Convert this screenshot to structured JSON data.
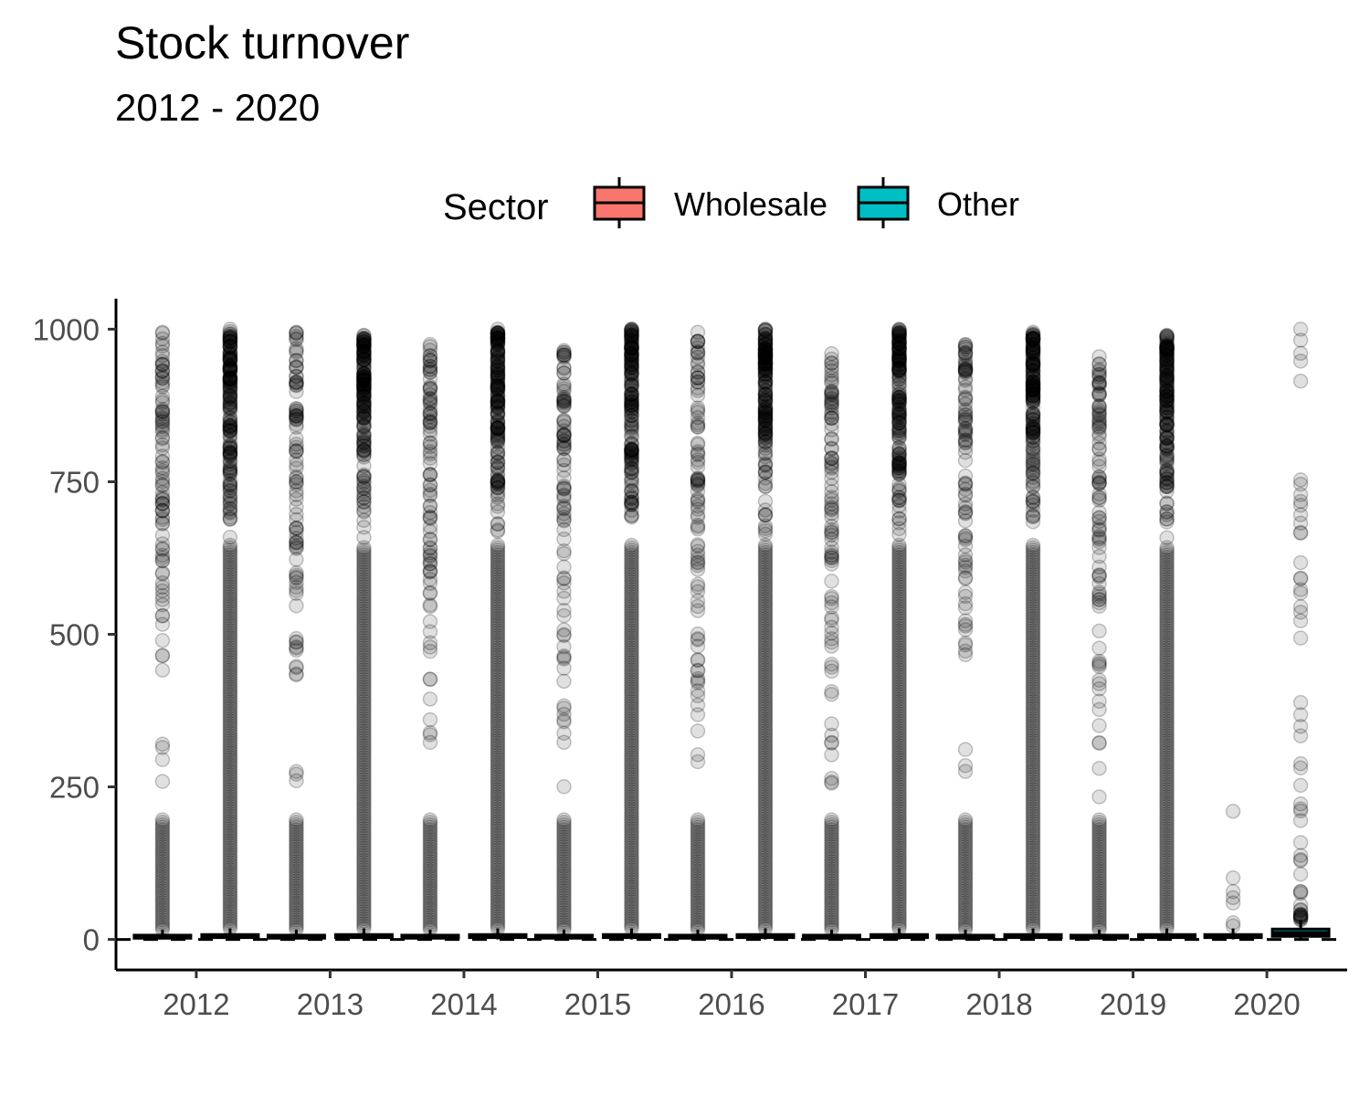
{
  "chart_data": {
    "type": "boxplot",
    "title": "Stock turnover",
    "subtitle": "2012 - 2020",
    "xlabel": "",
    "ylabel": "",
    "ylim": [
      -50,
      1050
    ],
    "yticks": [
      0,
      250,
      500,
      750,
      1000
    ],
    "reference_line": {
      "y": 0,
      "style": "dashed"
    },
    "grid": false,
    "legend": {
      "title": "Sector",
      "position": "top",
      "entries": [
        {
          "name": "Wholesale",
          "color": "#F8766D"
        },
        {
          "name": "Other",
          "color": "#00BFC4"
        }
      ]
    },
    "categories": [
      "2012",
      "2013",
      "2014",
      "2015",
      "2016",
      "2017",
      "2018",
      "2019",
      "2020"
    ],
    "series": [
      {
        "name": "Wholesale",
        "color": "#F8766D",
        "boxes": [
          {
            "q1": 2,
            "median": 4,
            "q3": 7,
            "whisker_high": 16,
            "outlier_max": 995
          },
          {
            "q1": 2,
            "median": 4,
            "q3": 7,
            "whisker_high": 16,
            "outlier_max": 995
          },
          {
            "q1": 2,
            "median": 4,
            "q3": 7,
            "whisker_high": 16,
            "outlier_max": 975
          },
          {
            "q1": 2,
            "median": 4,
            "q3": 7,
            "whisker_high": 16,
            "outlier_max": 965
          },
          {
            "q1": 2,
            "median": 4,
            "q3": 7,
            "whisker_high": 16,
            "outlier_max": 995
          },
          {
            "q1": 2,
            "median": 4,
            "q3": 7,
            "whisker_high": 16,
            "outlier_max": 960
          },
          {
            "q1": 2,
            "median": 4,
            "q3": 7,
            "whisker_high": 16,
            "outlier_max": 975
          },
          {
            "q1": 2,
            "median": 4,
            "q3": 7,
            "whisker_high": 16,
            "outlier_max": 955
          },
          {
            "q1": 3,
            "median": 5,
            "q3": 8,
            "whisker_high": 18,
            "outlier_max": 210
          }
        ]
      },
      {
        "name": "Other",
        "color": "#00BFC4",
        "boxes": [
          {
            "q1": 3,
            "median": 5,
            "q3": 8,
            "whisker_high": 18,
            "outlier_max": 1000
          },
          {
            "q1": 3,
            "median": 5,
            "q3": 8,
            "whisker_high": 18,
            "outlier_max": 990
          },
          {
            "q1": 3,
            "median": 5,
            "q3": 8,
            "whisker_high": 18,
            "outlier_max": 1000
          },
          {
            "q1": 3,
            "median": 5,
            "q3": 8,
            "whisker_high": 18,
            "outlier_max": 1000
          },
          {
            "q1": 3,
            "median": 5,
            "q3": 8,
            "whisker_high": 18,
            "outlier_max": 1000
          },
          {
            "q1": 3,
            "median": 5,
            "q3": 8,
            "whisker_high": 18,
            "outlier_max": 1000
          },
          {
            "q1": 3,
            "median": 5,
            "q3": 8,
            "whisker_high": 18,
            "outlier_max": 995
          },
          {
            "q1": 3,
            "median": 5,
            "q3": 8,
            "whisker_high": 18,
            "outlier_max": 990
          },
          {
            "q1": 5,
            "median": 10,
            "q3": 17,
            "whisker_high": 32,
            "outlier_max": 1000
          }
        ]
      }
    ]
  }
}
